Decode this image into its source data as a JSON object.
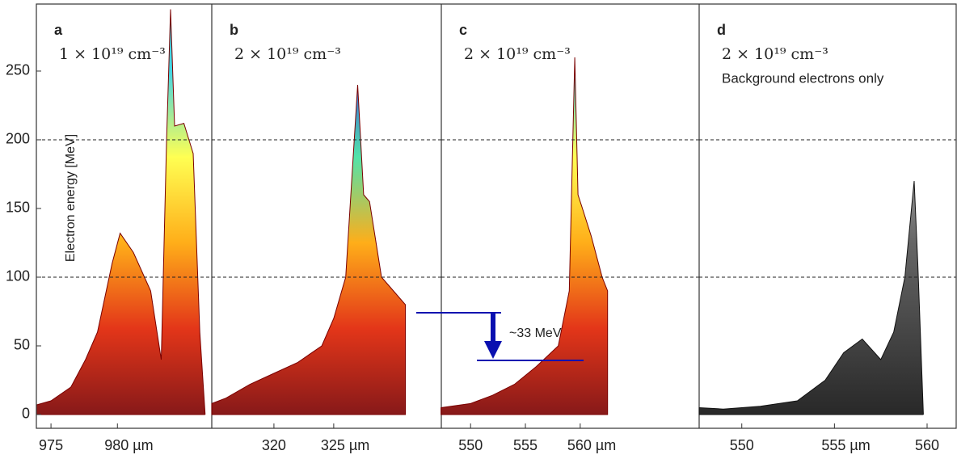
{
  "chart_data": [
    {
      "type": "area",
      "label": "a",
      "annotation": "1 × 10¹⁹ cm⁻³",
      "ylabel": "Electron energy [MeV]",
      "x": [
        973.9,
        975,
        976.5,
        977.6,
        978.5,
        979.6,
        980.2,
        981.2,
        982.5,
        983.3,
        983.7,
        984,
        984.3,
        985,
        985.7,
        986.2,
        986.6
      ],
      "values": [
        7,
        10,
        20,
        40,
        60,
        110,
        132,
        118,
        90,
        40,
        200,
        295,
        210,
        212,
        190,
        60,
        0
      ],
      "colors": [
        "#7a0000",
        "#e02000",
        "#ffa500",
        "#ffff40",
        "#30d0e0"
      ],
      "xlim": [
        973.9,
        987.1
      ],
      "xticks": [
        975,
        {
          "value": 980,
          "label": "980 µm"
        }
      ],
      "ylim": [
        -10,
        298.8
      ],
      "yticks": [
        0,
        50,
        100,
        150,
        200,
        250
      ],
      "hlines": [
        100,
        200
      ]
    },
    {
      "type": "area",
      "label": "b",
      "annotation": "2 × 10¹⁹ cm⁻³",
      "x": [
        314.8,
        316,
        318,
        320,
        322,
        324,
        325,
        326,
        327,
        327.5,
        328,
        329,
        330,
        331
      ],
      "values": [
        8,
        12,
        22,
        30,
        38,
        50,
        70,
        100,
        240,
        160,
        155,
        100,
        90,
        80
      ],
      "colors": [
        "#7a0000",
        "#e02000",
        "#ffa500",
        "#40e0a0",
        "#2040e0"
      ],
      "xlim": [
        314.8,
        334.0
      ],
      "xticks": [
        320,
        {
          "value": 325,
          "label": "325 µm"
        }
      ],
      "ylim": [
        -10,
        298.8
      ],
      "hlines": [
        100,
        200
      ]
    },
    {
      "type": "area",
      "label": "c",
      "annotation": "2 × 10¹⁹ cm⁻³",
      "arrow_label": "~33 MeV",
      "x": [
        547.3,
        550,
        552,
        554,
        556,
        558,
        559,
        559.5,
        559.8,
        560.2,
        561,
        562,
        562.5
      ],
      "values": [
        5,
        8,
        14,
        22,
        35,
        50,
        90,
        260,
        160,
        150,
        130,
        100,
        90
      ],
      "colors": [
        "#7a0000",
        "#e02000",
        "#ffa500",
        "#ffff40",
        "#30d0e0"
      ],
      "xlim": [
        547.33,
        570.85
      ],
      "xticks": [
        550,
        555,
        {
          "value": 560,
          "label": "560 µm"
        }
      ],
      "ylim": [
        -10,
        298.8
      ],
      "hlines": [
        100,
        200
      ]
    },
    {
      "type": "area",
      "label": "d",
      "annotation": "2 × 10¹⁹ cm⁻³",
      "note": "Background electrons only",
      "x": [
        547.7,
        549,
        551,
        553,
        554.5,
        555.5,
        556.5,
        557.5,
        558.2,
        558.8,
        559.3,
        559.5,
        559.8
      ],
      "values": [
        5,
        4,
        6,
        10,
        25,
        45,
        55,
        40,
        60,
        100,
        170,
        110,
        0
      ],
      "colors": [
        "#111111",
        "#555555",
        "#dddddd"
      ],
      "xlim": [
        547.7,
        561.57
      ],
      "xticks": [
        550,
        {
          "value": 555,
          "label": "555 µm"
        },
        560
      ],
      "ylim": [
        -10,
        298.8
      ],
      "hlines": [
        100,
        200
      ]
    }
  ]
}
